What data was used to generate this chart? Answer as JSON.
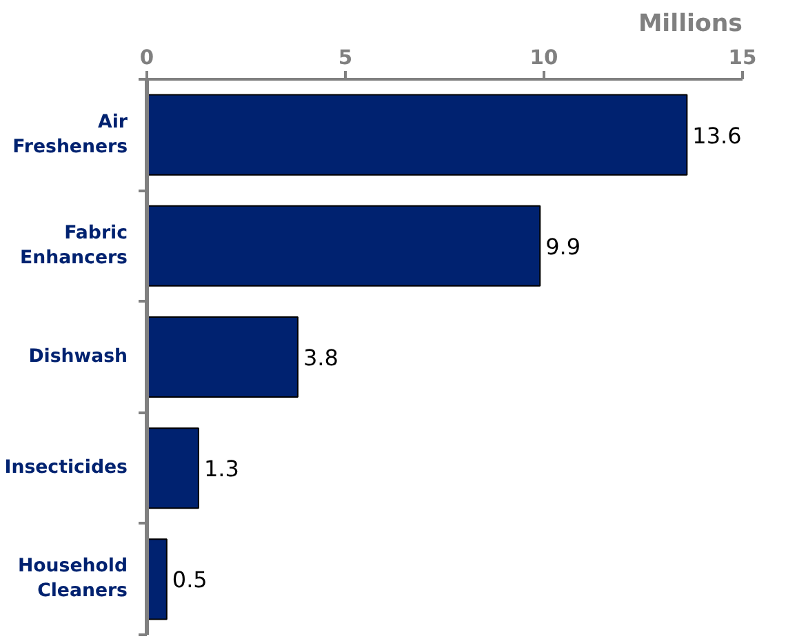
{
  "chart_data": {
    "type": "bar",
    "orientation": "horizontal",
    "xlabel": "Millions",
    "categories": [
      "Air Fresheners",
      "Fabric Enhancers",
      "Dishwash",
      "Insecticides",
      "Household Cleaners"
    ],
    "values": [
      13.6,
      9.9,
      3.8,
      1.3,
      0.5
    ],
    "color": "#002270",
    "xlim": [
      0,
      15
    ],
    "xticks": [
      0,
      5,
      10,
      15
    ],
    "data_labels": true,
    "grid": false
  }
}
